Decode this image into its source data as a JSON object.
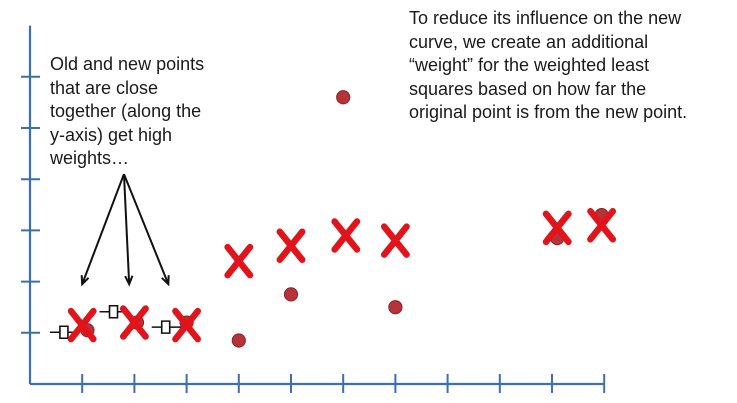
{
  "annotations": {
    "left_note": "Old and new points\nthat are close\ntogether (along the\ny-axis) get high\nweights…",
    "right_note": "To reduce its influence on the new\ncurve, we create an additional\n“weight” for the weighted least\nsquares based on how far the\noriginal point is from the new point."
  },
  "colors": {
    "axis": "#3a6fb0",
    "marker_x": "#e2141b",
    "point_fill": "#b5343a",
    "point_stroke": "#8e2128",
    "arrows": "#111111",
    "weight_symbol": "#111111"
  },
  "chart_data": {
    "type": "scatter",
    "xlim": [
      0,
      11
    ],
    "ylim": [
      0,
      7
    ],
    "x_ticks": [
      1,
      2,
      3,
      4,
      5,
      6,
      7,
      8,
      9,
      10,
      11
    ],
    "y_ticks": [
      1,
      2,
      3,
      4,
      5,
      6
    ],
    "original_points": [
      {
        "x": 1.1,
        "y": 1.05
      },
      {
        "x": 2.05,
        "y": 1.2
      },
      {
        "x": 3.0,
        "y": 1.2
      },
      {
        "x": 4.0,
        "y": 0.85
      },
      {
        "x": 5.0,
        "y": 1.75
      },
      {
        "x": 6.0,
        "y": 5.6
      },
      {
        "x": 7.0,
        "y": 1.5
      },
      {
        "x": 10.1,
        "y": 2.85
      },
      {
        "x": 10.95,
        "y": 3.3
      }
    ],
    "new_points": [
      {
        "x": 1.0,
        "y": 1.15
      },
      {
        "x": 2.0,
        "y": 1.2
      },
      {
        "x": 3.0,
        "y": 1.15
      },
      {
        "x": 4.0,
        "y": 2.4
      },
      {
        "x": 5.0,
        "y": 2.7
      },
      {
        "x": 6.05,
        "y": 2.9
      },
      {
        "x": 7.0,
        "y": 2.8
      },
      {
        "x": 10.1,
        "y": 3.05
      },
      {
        "x": 10.95,
        "y": 3.1
      }
    ],
    "weight_symbols": [
      {
        "x": 0.65,
        "y": 1.05
      },
      {
        "x": 1.6,
        "y": 1.45
      },
      {
        "x": 2.6,
        "y": 1.15
      }
    ],
    "arrows": [
      {
        "x": 1.0,
        "y": 1.95
      },
      {
        "x": 1.9,
        "y": 1.95
      },
      {
        "x": 2.65,
        "y": 1.95
      }
    ],
    "arrow_origin": {
      "x": 1.8,
      "y": 4.1
    }
  }
}
